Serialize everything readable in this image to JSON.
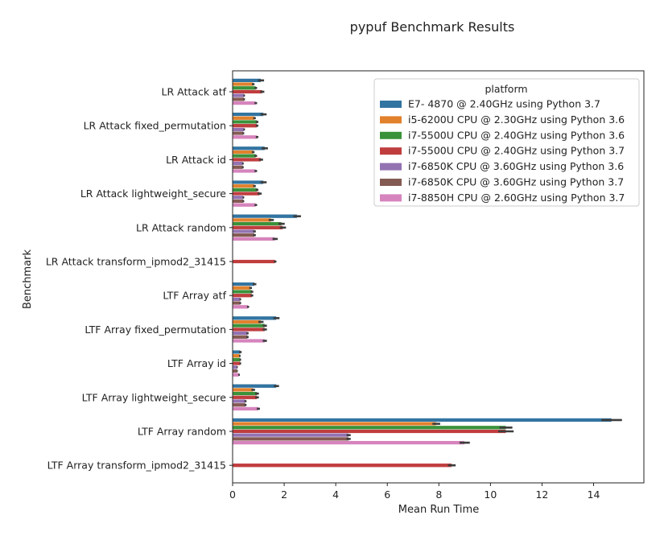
{
  "chart_data": {
    "type": "bar",
    "orientation": "horizontal",
    "title": "pypuf Benchmark Results",
    "xlabel": "Mean Run Time",
    "ylabel": "Benchmark",
    "xlim": [
      0,
      15.95
    ],
    "xticks": [
      0,
      2,
      4,
      6,
      8,
      10,
      12,
      14
    ],
    "grid": false,
    "legend_title": "platform",
    "legend_position": "top-right",
    "categories": [
      "LR Attack atf",
      "LR Attack fixed_permutation",
      "LR Attack id",
      "LR Attack lightweight_secure",
      "LR Attack random",
      "LR Attack transform_ipmod2_31415",
      "LTF Array atf",
      "LTF Array fixed_permutation",
      "LTF Array id",
      "LTF Array lightweight_secure",
      "LTF Array random",
      "LTF Array transform_ipmod2_31415"
    ],
    "series": [
      {
        "name": "E7- 4870  @ 2.40GHz using Python 3.7",
        "color": "#3274a1",
        "values": [
          1.1,
          1.2,
          1.25,
          1.2,
          2.5,
          null,
          0.85,
          1.7,
          0.3,
          1.7,
          14.7,
          null
        ],
        "errors": [
          0.12,
          0.12,
          0.12,
          0.12,
          0.15,
          null,
          0.07,
          0.12,
          0.05,
          0.1,
          0.4,
          null
        ]
      },
      {
        "name": "i5-6200U CPU @ 2.30GHz using Python 3.6",
        "color": "#e1812c",
        "values": [
          0.8,
          0.85,
          0.8,
          0.85,
          1.5,
          null,
          0.7,
          1.1,
          0.28,
          0.8,
          7.9,
          null
        ],
        "errors": [
          0.05,
          0.05,
          0.05,
          0.05,
          0.1,
          null,
          0.05,
          0.1,
          0.03,
          0.07,
          0.15,
          null
        ]
      },
      {
        "name": "i7-5500U CPU @ 2.40GHz using Python 3.6",
        "color": "#3a923a",
        "values": [
          0.9,
          0.95,
          0.9,
          0.95,
          1.9,
          null,
          0.75,
          1.25,
          0.3,
          0.95,
          10.6,
          null
        ],
        "errors": [
          0.05,
          0.05,
          0.05,
          0.05,
          0.12,
          null,
          0.05,
          0.08,
          0.03,
          0.07,
          0.25,
          null
        ]
      },
      {
        "name": "i7-5500U CPU @ 2.40GHz using Python 3.7",
        "color": "#c03d3e",
        "values": [
          1.15,
          0.95,
          1.1,
          1.05,
          1.95,
          1.65,
          0.75,
          1.25,
          0.3,
          0.95,
          10.6,
          8.5
        ],
        "errors": [
          0.08,
          0.05,
          0.08,
          0.08,
          0.12,
          0.05,
          0.05,
          0.08,
          0.03,
          0.07,
          0.3,
          0.15
        ]
      },
      {
        "name": "i7-6850K CPU @ 3.60GHz using Python 3.6",
        "color": "#9372b2",
        "values": [
          0.45,
          0.45,
          0.4,
          0.42,
          0.85,
          null,
          0.3,
          0.58,
          0.18,
          0.5,
          4.5,
          null
        ],
        "errors": [
          0.03,
          0.03,
          0.03,
          0.03,
          0.05,
          null,
          0.03,
          0.04,
          0.02,
          0.04,
          0.08,
          null
        ]
      },
      {
        "name": "i7-6850K CPU @ 3.60GHz using Python 3.7",
        "color": "#845b53",
        "values": [
          0.45,
          0.42,
          0.4,
          0.42,
          0.85,
          null,
          0.3,
          0.58,
          0.18,
          0.5,
          4.5,
          null
        ],
        "errors": [
          0.03,
          0.03,
          0.03,
          0.03,
          0.05,
          null,
          0.03,
          0.04,
          0.02,
          0.04,
          0.08,
          null
        ]
      },
      {
        "name": "i7-8850H CPU @ 2.60GHz using Python 3.7",
        "color": "#d684bd",
        "values": [
          0.9,
          0.95,
          0.9,
          0.9,
          1.65,
          null,
          0.6,
          1.25,
          0.25,
          1.0,
          9.0,
          null
        ],
        "errors": [
          0.05,
          0.05,
          0.05,
          0.05,
          0.1,
          null,
          0.04,
          0.08,
          0.03,
          0.06,
          0.2,
          null
        ]
      }
    ]
  }
}
